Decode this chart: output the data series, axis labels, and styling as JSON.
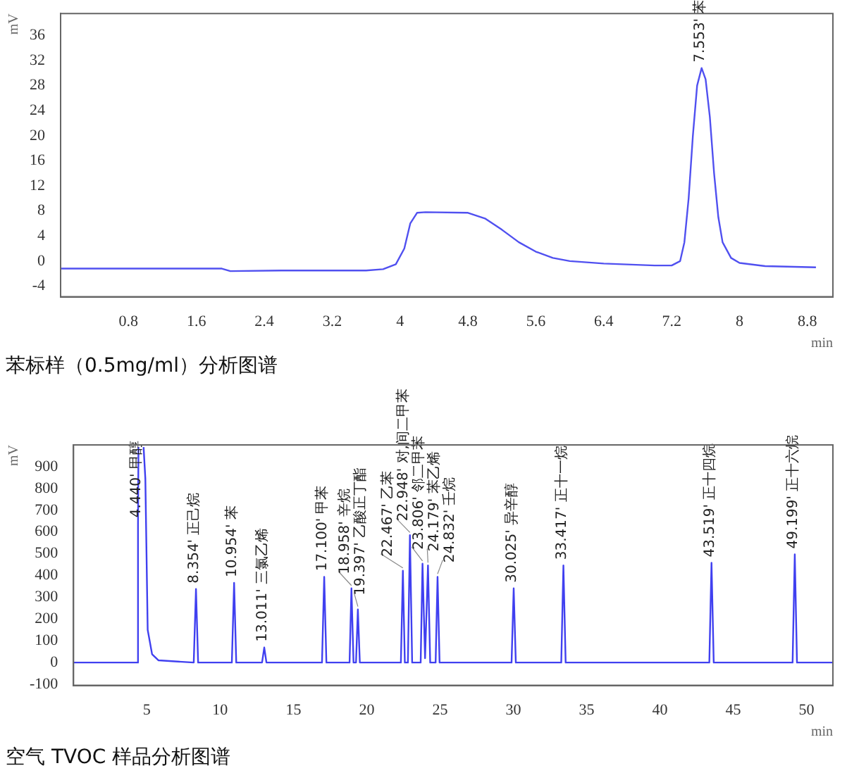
{
  "chart_data": [
    {
      "type": "line",
      "title": "苯标样（0.5mg/ml）分析图谱",
      "xlabel": "min",
      "ylabel": "mV",
      "xlim": [
        0,
        9.1
      ],
      "ylim": [
        -5.7,
        39.5
      ],
      "xticks": [
        0.8,
        1.6,
        2.4,
        3.2,
        4,
        4.8,
        5.6,
        6.4,
        7.2,
        8,
        8.8
      ],
      "yticks": [
        -4,
        0,
        4,
        8,
        12,
        16,
        20,
        24,
        28,
        32,
        36
      ],
      "series": [
        {
          "color": "#5050f0",
          "x": [
            0,
            1.9,
            2.0,
            2.6,
            3.6,
            3.8,
            3.95,
            4.05,
            4.12,
            4.2,
            4.3,
            4.8,
            5.0,
            5.2,
            5.4,
            5.6,
            5.8,
            6.0,
            6.4,
            7.0,
            7.2,
            7.3,
            7.35,
            7.4,
            7.45,
            7.5,
            7.553,
            7.6,
            7.65,
            7.7,
            7.75,
            7.8,
            7.9,
            8.0,
            8.3,
            8.9
          ],
          "values": [
            -1.2,
            -1.2,
            -1.6,
            -1.5,
            -1.5,
            -1.3,
            -0.5,
            2,
            6,
            7.7,
            7.8,
            7.7,
            6.8,
            5,
            3,
            1.5,
            0.5,
            0,
            -0.4,
            -0.7,
            -0.7,
            0,
            3,
            10,
            20,
            28,
            30.8,
            29,
            23,
            14,
            7,
            3,
            0.5,
            -0.3,
            -0.8,
            -1.0
          ]
        }
      ],
      "annotations": [
        {
          "text": "7.553' 苯",
          "x": 7.553,
          "y": 30.8
        }
      ]
    },
    {
      "type": "line",
      "title": "空气 TVOC 样品分析图谱",
      "xlabel": "min",
      "ylabel": "mV",
      "xlim": [
        0,
        51.8
      ],
      "ylim": [
        -105,
        1000
      ],
      "xticks": [
        5,
        10,
        15,
        20,
        25,
        30,
        35,
        40,
        45,
        50
      ],
      "yticks": [
        -100,
        0,
        100,
        200,
        300,
        400,
        500,
        600,
        700,
        800,
        900
      ],
      "series": [
        {
          "color": "#4040f0",
          "x": [
            0,
            4.35,
            4.4,
            4.43,
            4.44,
            4.76,
            4.78,
            4.9,
            5.06,
            5.36,
            5.8,
            8.2,
            8.354,
            8.5,
            10.8,
            10.954,
            11.1,
            12.86,
            13.011,
            13.16,
            16.95,
            17.1,
            17.25,
            18.83,
            18.958,
            19.1,
            19.27,
            19.397,
            19.53,
            22.33,
            22.467,
            22.6,
            22.81,
            22.948,
            23.1,
            23.68,
            23.806,
            23.98,
            24.179,
            24.33,
            24.7,
            24.832,
            24.97,
            29.88,
            30.025,
            30.17,
            33.27,
            33.417,
            33.57,
            43.37,
            43.519,
            43.67,
            49.05,
            49.199,
            49.35,
            51.8
          ],
          "values": [
            0,
            0,
            640,
            990,
            null,
            null,
            990,
            845,
            150,
            38,
            10,
            0,
            338,
            0,
            0,
            366,
            0,
            0,
            69,
            0,
            0,
            394,
            0,
            0,
            341,
            0,
            0,
            244,
            0,
            0,
            422,
            0,
            0,
            585,
            0,
            0,
            454,
            20,
            446,
            0,
            0,
            394,
            0,
            0,
            341,
            0,
            0,
            446,
            0,
            0,
            458,
            0,
            0,
            497,
            0,
            0
          ]
        }
      ],
      "annotations": [
        {
          "text": "4.440' 甲醇",
          "x": 4.4,
          "y": 640
        },
        {
          "text": "8.354' 正己烷",
          "x": 8.354,
          "y": 338
        },
        {
          "text": "10.954' 苯",
          "x": 10.954,
          "y": 366
        },
        {
          "text": "13.011' 三氯乙烯",
          "x": 13.011,
          "y": 69
        },
        {
          "text": "17.100' 甲苯",
          "x": 17.1,
          "y": 394
        },
        {
          "text": "18.958' 辛烷",
          "x": 18.958,
          "y": 341
        },
        {
          "text": "19.397' 乙酸正丁酯",
          "x": 19.397,
          "y": 244
        },
        {
          "text": "22.467' 乙苯",
          "x": 22.467,
          "y": 422
        },
        {
          "text": "22.948' 对,间二甲苯",
          "x": 22.948,
          "y": 585
        },
        {
          "text": "23.806' 邻二甲苯",
          "x": 23.806,
          "y": 454
        },
        {
          "text": "24.179' 苯乙烯",
          "x": 24.179,
          "y": 446
        },
        {
          "text": "24.832' 壬烷",
          "x": 24.832,
          "y": 394
        },
        {
          "text": "30.025' 异辛醇",
          "x": 30.025,
          "y": 341
        },
        {
          "text": "33.417' 正十一烷",
          "x": 33.417,
          "y": 446
        },
        {
          "text": "43.519' 正十四烷",
          "x": 43.519,
          "y": 458
        },
        {
          "text": "49.199' 正十六烷",
          "x": 49.199,
          "y": 497
        }
      ]
    }
  ]
}
